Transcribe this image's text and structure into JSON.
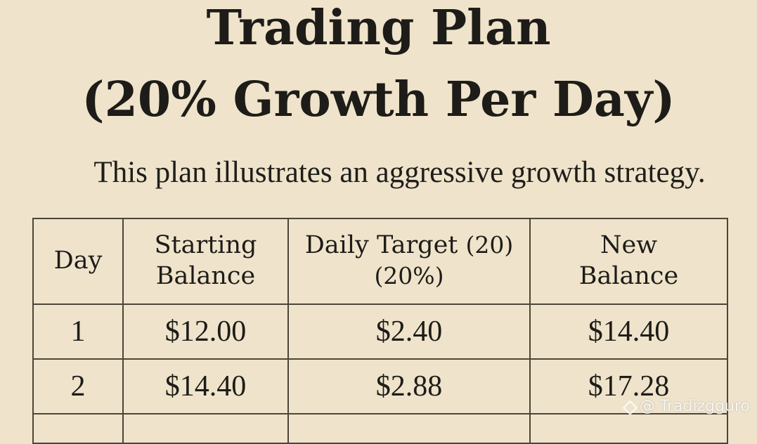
{
  "title_line1": "Trading Plan",
  "title_line2": "(20% Growth Per Day)",
  "subtitle": "This plan illustrates an aggressive growth strategy.",
  "table": {
    "headers": {
      "day": "Day",
      "starting_balance_line1": "Starting",
      "starting_balance_line2": "Balance",
      "daily_target_line1": "Daily Target",
      "daily_target_paren": "(20)",
      "daily_target_line2": "(20%)",
      "new_balance_line1": "New",
      "new_balance_line2": "Balance"
    },
    "rows": [
      {
        "day": "1",
        "starting_balance": "$12.00",
        "daily_target": "$2.40",
        "new_balance": "$14.40"
      },
      {
        "day": "2",
        "starting_balance": "$14.40",
        "daily_target": "$2.88",
        "new_balance": "$17.28"
      }
    ]
  },
  "watermark": {
    "icon": "binance-logo-icon",
    "text": "@ Tradizgguro"
  }
}
